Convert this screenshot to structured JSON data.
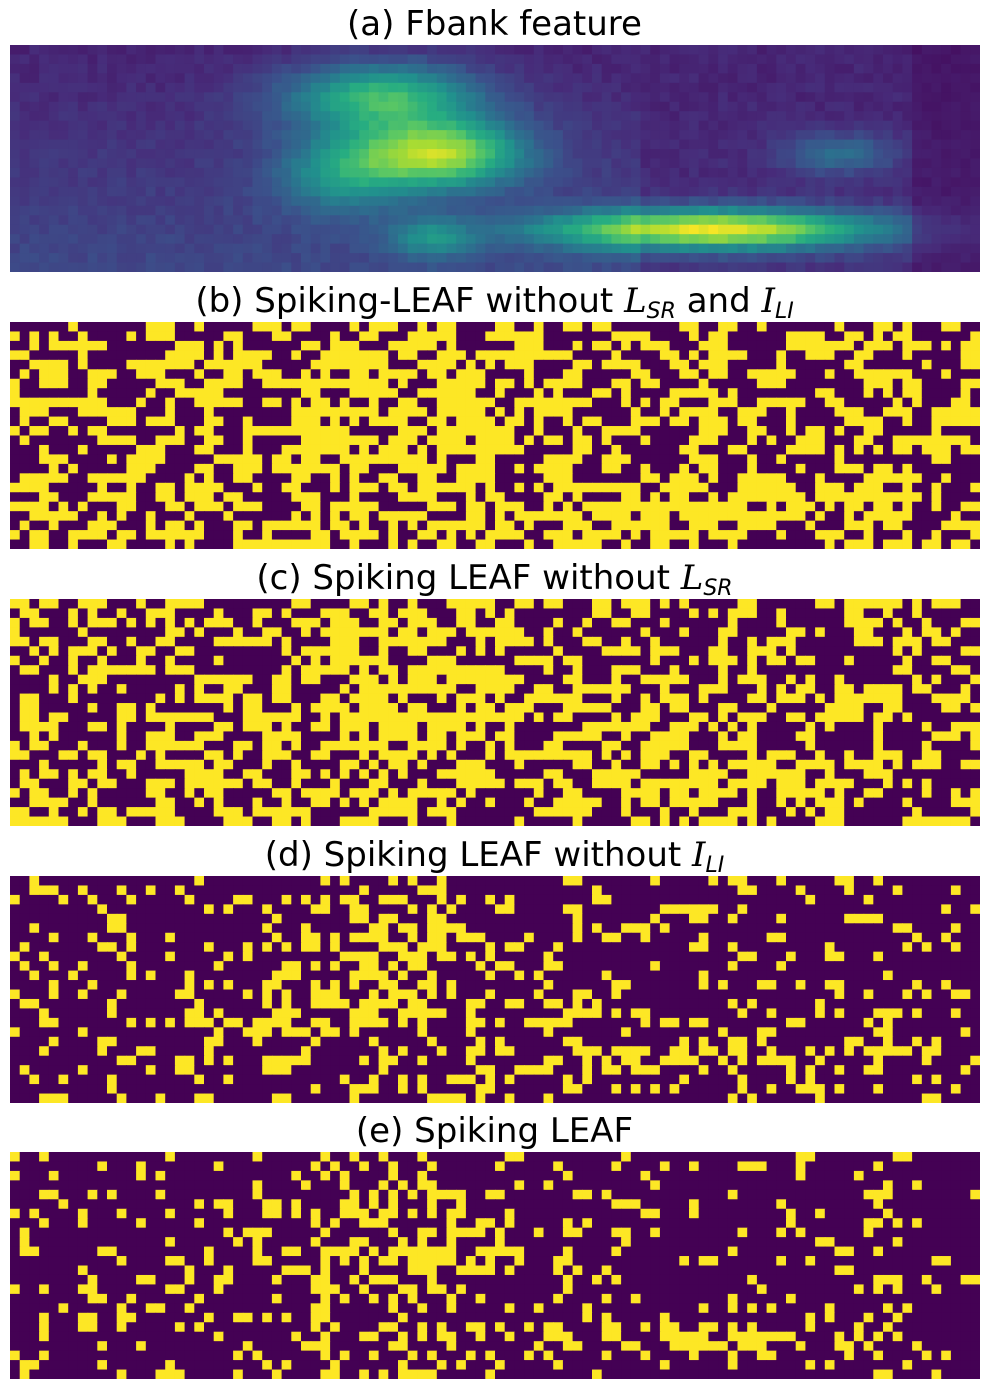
{
  "colors": {
    "spike_off": "#440154",
    "spike_on": "#fde725",
    "colormap": "viridis"
  },
  "chart_data": [
    {
      "type": "heatmap",
      "title": "(a) Fbank feature",
      "colormap": "viridis",
      "axes_visible": false,
      "grid": false,
      "rows": 24,
      "cols": 100,
      "value_range": [
        0,
        1
      ],
      "blobs": [
        {
          "col": 38,
          "row": 5,
          "sc": 7,
          "sr": 2.5,
          "amp": 0.55
        },
        {
          "col": 44,
          "row": 11,
          "sc": 6,
          "sr": 2.5,
          "amp": 0.7
        },
        {
          "col": 34,
          "row": 13,
          "sc": 5,
          "sr": 3,
          "amp": 0.35
        },
        {
          "col": 72,
          "row": 19,
          "sc": 12,
          "sr": 1.5,
          "amp": 0.85
        },
        {
          "col": 85,
          "row": 11,
          "sc": 4,
          "sr": 1.5,
          "amp": 0.25
        },
        {
          "col": 43,
          "row": 20,
          "sc": 3,
          "sr": 1.5,
          "amp": 0.3
        }
      ]
    },
    {
      "type": "heatmap",
      "title": "(b) Spiking-LEAF without L_SR and I_LI",
      "title_parts": [
        "(b) Spiking-LEAF without ",
        "L",
        "SR",
        " and ",
        "I",
        "LI"
      ],
      "colormap": "binary-spikes",
      "rows": 24,
      "cols": 100,
      "spike_density_base": 0.3,
      "spike_density_gain": 0.55,
      "seed": 11
    },
    {
      "type": "heatmap",
      "title": "(c) Spiking LEAF without L_SR",
      "title_parts": [
        "(c) Spiking LEAF without ",
        "L",
        "SR"
      ],
      "colormap": "binary-spikes",
      "rows": 24,
      "cols": 100,
      "spike_density_base": 0.27,
      "spike_density_gain": 0.5,
      "seed": 23
    },
    {
      "type": "heatmap",
      "title": "(d) Spiking LEAF without I_LI",
      "title_parts": [
        "(d) Spiking LEAF without ",
        "I",
        "LI"
      ],
      "colormap": "binary-spikes",
      "rows": 24,
      "cols": 100,
      "spike_density_base": 0.1,
      "spike_density_gain": 0.55,
      "seed": 37
    },
    {
      "type": "heatmap",
      "title": "(e) Spiking LEAF",
      "colormap": "binary-spikes",
      "rows": 24,
      "cols": 100,
      "spike_density_base": 0.04,
      "spike_density_gain": 0.65,
      "seed": 53
    }
  ]
}
